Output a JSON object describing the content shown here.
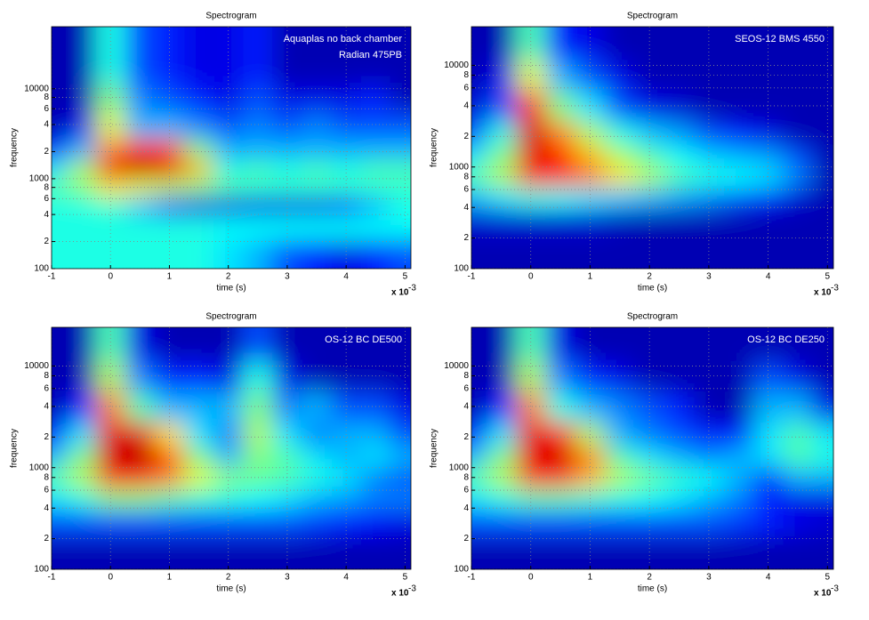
{
  "chart_data": [
    {
      "type": "heatmap",
      "title": "Spectrogram",
      "xlabel": "time (s)",
      "ylabel": "frequency",
      "x_scale_label": "x 10",
      "x_scale_exponent": "-3",
      "annotation": [
        "Aquaplas no back chamber",
        "Radian 475PB"
      ],
      "log_y": true,
      "grid": true,
      "colormap": "jet",
      "clim": [
        0,
        1
      ],
      "xlim": [
        -1,
        5.1
      ],
      "xticks": [
        -1,
        0,
        1,
        2,
        3,
        4,
        5
      ],
      "ylim": [
        100,
        49000
      ],
      "yticks": [
        100,
        {
          "value": 200,
          "label": "2"
        },
        {
          "value": 400,
          "label": "4"
        },
        {
          "value": 600,
          "label": "6"
        },
        {
          "value": 800,
          "label": "8"
        },
        1000,
        {
          "value": 2000,
          "label": "2"
        },
        {
          "value": 4000,
          "label": "4"
        },
        {
          "value": 6000,
          "label": "6"
        },
        {
          "value": 8000,
          "label": "8"
        },
        10000
      ],
      "x": [
        -1,
        -0.5,
        0,
        0.5,
        1,
        1.5,
        2,
        2.5,
        3,
        3.5,
        4,
        4.5,
        5
      ],
      "y": [
        150,
        300,
        500,
        800,
        1300,
        2000,
        4000,
        8000,
        16000
      ],
      "z": [
        [
          0.4,
          0.4,
          0.4,
          0.4,
          0.4,
          0.4,
          0.35,
          0.3,
          0.2,
          0.15,
          0.1,
          0.15,
          0.2
        ],
        [
          0.4,
          0.4,
          0.4,
          0.4,
          0.4,
          0.4,
          0.38,
          0.38,
          0.38,
          0.38,
          0.38,
          0.38,
          0.38
        ],
        [
          0.4,
          0.4,
          0.42,
          0.3,
          0.15,
          0.1,
          0.1,
          0.1,
          0.1,
          0.1,
          0.15,
          0.3,
          0.4
        ],
        [
          0.45,
          0.5,
          0.65,
          0.6,
          0.55,
          0.5,
          0.45,
          0.42,
          0.42,
          0.42,
          0.42,
          0.42,
          0.42
        ],
        [
          0.35,
          0.55,
          0.9,
          0.95,
          0.9,
          0.7,
          0.4,
          0.45,
          0.4,
          0.45,
          0.4,
          0.45,
          0.45
        ],
        [
          0.15,
          0.3,
          0.75,
          0.85,
          0.8,
          0.5,
          0.3,
          0.3,
          0.3,
          0.3,
          0.3,
          0.3,
          0.3
        ],
        [
          0.05,
          0.1,
          0.6,
          0.3,
          0.3,
          0.25,
          0.2,
          0.25,
          0.2,
          0.25,
          0.2,
          0.2,
          0.2
        ],
        [
          0.05,
          0.05,
          0.5,
          0.25,
          0.2,
          0.15,
          0.1,
          0.2,
          0.1,
          0.1,
          0.1,
          0.15,
          0.05
        ],
        [
          0.05,
          0.05,
          0.4,
          0.2,
          0.15,
          0.1,
          0.1,
          0.15,
          0.05,
          0.05,
          0.05,
          0.05,
          0.05
        ]
      ]
    },
    {
      "type": "heatmap",
      "title": "Spectrogram",
      "xlabel": "time (s)",
      "ylabel": "frequency",
      "x_scale_label": "x 10",
      "x_scale_exponent": "-3",
      "annotation": [
        "SEOS-12 BMS 4550"
      ],
      "log_y": true,
      "grid": true,
      "colormap": "jet",
      "clim": [
        0,
        1
      ],
      "xlim": [
        -1,
        5.1
      ],
      "xticks": [
        -1,
        0,
        1,
        2,
        3,
        4,
        5
      ],
      "ylim": [
        100,
        24000
      ],
      "yticks": [
        100,
        {
          "value": 200,
          "label": "2"
        },
        {
          "value": 400,
          "label": "4"
        },
        {
          "value": 600,
          "label": "6"
        },
        {
          "value": 800,
          "label": "8"
        },
        1000,
        {
          "value": 2000,
          "label": "2"
        },
        {
          "value": 4000,
          "label": "4"
        },
        {
          "value": 6000,
          "label": "6"
        },
        {
          "value": 8000,
          "label": "8"
        },
        10000
      ],
      "x": [
        -1,
        -0.5,
        0,
        0.5,
        1,
        1.5,
        2,
        2.5,
        3,
        3.5,
        4,
        4.5,
        5
      ],
      "y": [
        150,
        300,
        500,
        800,
        1300,
        2000,
        4000,
        8000,
        16000
      ],
      "z": [
        [
          0.05,
          0.05,
          0.05,
          0.05,
          0.05,
          0.05,
          0.05,
          0.05,
          0.05,
          0.05,
          0.05,
          0.05,
          0.05
        ],
        [
          0.08,
          0.08,
          0.08,
          0.08,
          0.08,
          0.06,
          0.05,
          0.05,
          0.05,
          0.05,
          0.05,
          0.05,
          0.05
        ],
        [
          0.3,
          0.35,
          0.4,
          0.38,
          0.35,
          0.32,
          0.3,
          0.28,
          0.25,
          0.2,
          0.15,
          0.08,
          0.05
        ],
        [
          0.45,
          0.55,
          0.85,
          0.85,
          0.75,
          0.65,
          0.55,
          0.45,
          0.4,
          0.38,
          0.35,
          0.25,
          0.05
        ],
        [
          0.35,
          0.5,
          0.9,
          0.85,
          0.7,
          0.55,
          0.45,
          0.38,
          0.33,
          0.3,
          0.28,
          0.2,
          0.05
        ],
        [
          0.2,
          0.4,
          0.92,
          0.75,
          0.55,
          0.4,
          0.32,
          0.28,
          0.2,
          0.15,
          0.1,
          0.05,
          0.05
        ],
        [
          0.08,
          0.2,
          0.85,
          0.5,
          0.35,
          0.2,
          0.1,
          0.08,
          0.05,
          0.05,
          0.05,
          0.05,
          0.05
        ],
        [
          0.05,
          0.1,
          0.6,
          0.3,
          0.2,
          0.1,
          0.05,
          0.05,
          0.05,
          0.05,
          0.05,
          0.05,
          0.05
        ],
        [
          0.05,
          0.05,
          0.45,
          0.15,
          0.1,
          0.05,
          0.05,
          0.05,
          0.05,
          0.05,
          0.05,
          0.05,
          0.05
        ]
      ]
    },
    {
      "type": "heatmap",
      "title": "Spectrogram",
      "xlabel": "time (s)",
      "ylabel": "frequency",
      "x_scale_label": "x 10",
      "x_scale_exponent": "-3",
      "annotation": [
        "OS-12 BC DE500"
      ],
      "log_y": true,
      "grid": true,
      "colormap": "jet",
      "clim": [
        0,
        1
      ],
      "xlim": [
        -1,
        5.1
      ],
      "xticks": [
        -1,
        0,
        1,
        2,
        3,
        4,
        5
      ],
      "ylim": [
        100,
        24000
      ],
      "yticks": [
        100,
        {
          "value": 200,
          "label": "2"
        },
        {
          "value": 400,
          "label": "4"
        },
        {
          "value": 600,
          "label": "6"
        },
        {
          "value": 800,
          "label": "8"
        },
        1000,
        {
          "value": 2000,
          "label": "2"
        },
        {
          "value": 4000,
          "label": "4"
        },
        {
          "value": 6000,
          "label": "6"
        },
        {
          "value": 8000,
          "label": "8"
        },
        10000
      ],
      "x": [
        -1,
        -0.5,
        0,
        0.5,
        1,
        1.5,
        2,
        2.5,
        3,
        3.5,
        4,
        4.5,
        5
      ],
      "y": [
        150,
        300,
        500,
        800,
        1300,
        2000,
        4000,
        8000,
        16000
      ],
      "z": [
        [
          0.05,
          0.05,
          0.05,
          0.05,
          0.05,
          0.05,
          0.05,
          0.05,
          0.05,
          0.05,
          0.05,
          0.05,
          0.05
        ],
        [
          0.2,
          0.2,
          0.2,
          0.2,
          0.2,
          0.2,
          0.2,
          0.2,
          0.2,
          0.18,
          0.15,
          0.12,
          0.1
        ],
        [
          0.35,
          0.4,
          0.5,
          0.5,
          0.45,
          0.42,
          0.4,
          0.38,
          0.35,
          0.3,
          0.28,
          0.25,
          0.25
        ],
        [
          0.45,
          0.55,
          0.85,
          0.85,
          0.75,
          0.6,
          0.5,
          0.48,
          0.45,
          0.4,
          0.35,
          0.25,
          0.2
        ],
        [
          0.3,
          0.5,
          0.92,
          0.95,
          0.8,
          0.5,
          0.3,
          0.5,
          0.45,
          0.35,
          0.3,
          0.35,
          0.3
        ],
        [
          0.15,
          0.35,
          0.9,
          0.9,
          0.65,
          0.35,
          0.25,
          0.55,
          0.35,
          0.25,
          0.3,
          0.3,
          0.2
        ],
        [
          0.05,
          0.15,
          0.75,
          0.45,
          0.3,
          0.3,
          0.3,
          0.5,
          0.25,
          0.3,
          0.2,
          0.2,
          0.1
        ],
        [
          0.05,
          0.05,
          0.55,
          0.25,
          0.15,
          0.15,
          0.1,
          0.4,
          0.1,
          0.05,
          0.05,
          0.05,
          0.05
        ],
        [
          0.05,
          0.05,
          0.45,
          0.1,
          0.05,
          0.05,
          0.05,
          0.2,
          0.05,
          0.05,
          0.05,
          0.05,
          0.05
        ]
      ]
    },
    {
      "type": "heatmap",
      "title": "Spectrogram",
      "xlabel": "time (s)",
      "ylabel": "frequency",
      "x_scale_label": "x 10",
      "x_scale_exponent": "-3",
      "annotation": [
        "OS-12 BC DE250"
      ],
      "log_y": true,
      "grid": true,
      "colormap": "jet",
      "clim": [
        0,
        1
      ],
      "xlim": [
        -1,
        5.1
      ],
      "xticks": [
        -1,
        0,
        1,
        2,
        3,
        4,
        5
      ],
      "ylim": [
        100,
        24000
      ],
      "yticks": [
        100,
        {
          "value": 200,
          "label": "2"
        },
        {
          "value": 400,
          "label": "4"
        },
        {
          "value": 600,
          "label": "6"
        },
        {
          "value": 800,
          "label": "8"
        },
        1000,
        {
          "value": 2000,
          "label": "2"
        },
        {
          "value": 4000,
          "label": "4"
        },
        {
          "value": 6000,
          "label": "6"
        },
        {
          "value": 8000,
          "label": "8"
        },
        10000
      ],
      "x": [
        -1,
        -0.5,
        0,
        0.5,
        1,
        1.5,
        2,
        2.5,
        3,
        3.5,
        4,
        4.5,
        5
      ],
      "y": [
        150,
        300,
        500,
        800,
        1300,
        2000,
        4000,
        8000,
        16000
      ],
      "z": [
        [
          0.05,
          0.05,
          0.05,
          0.05,
          0.05,
          0.05,
          0.05,
          0.05,
          0.05,
          0.05,
          0.05,
          0.05,
          0.05
        ],
        [
          0.2,
          0.2,
          0.2,
          0.2,
          0.2,
          0.2,
          0.2,
          0.2,
          0.2,
          0.18,
          0.15,
          0.1,
          0.08
        ],
        [
          0.35,
          0.4,
          0.45,
          0.45,
          0.42,
          0.4,
          0.38,
          0.35,
          0.3,
          0.25,
          0.15,
          0.1,
          0.1
        ],
        [
          0.45,
          0.55,
          0.85,
          0.85,
          0.7,
          0.55,
          0.48,
          0.42,
          0.38,
          0.3,
          0.15,
          0.3,
          0.3
        ],
        [
          0.3,
          0.5,
          0.9,
          0.92,
          0.75,
          0.45,
          0.35,
          0.3,
          0.25,
          0.3,
          0.35,
          0.45,
          0.4
        ],
        [
          0.15,
          0.35,
          0.9,
          0.85,
          0.55,
          0.3,
          0.25,
          0.2,
          0.15,
          0.15,
          0.35,
          0.45,
          0.35
        ],
        [
          0.05,
          0.15,
          0.75,
          0.4,
          0.3,
          0.25,
          0.2,
          0.15,
          0.05,
          0.05,
          0.3,
          0.3,
          0.1
        ],
        [
          0.05,
          0.05,
          0.55,
          0.25,
          0.15,
          0.1,
          0.05,
          0.05,
          0.05,
          0.05,
          0.2,
          0.1,
          0.05
        ],
        [
          0.05,
          0.05,
          0.45,
          0.1,
          0.05,
          0.05,
          0.05,
          0.05,
          0.05,
          0.05,
          0.05,
          0.05,
          0.05
        ]
      ]
    }
  ]
}
